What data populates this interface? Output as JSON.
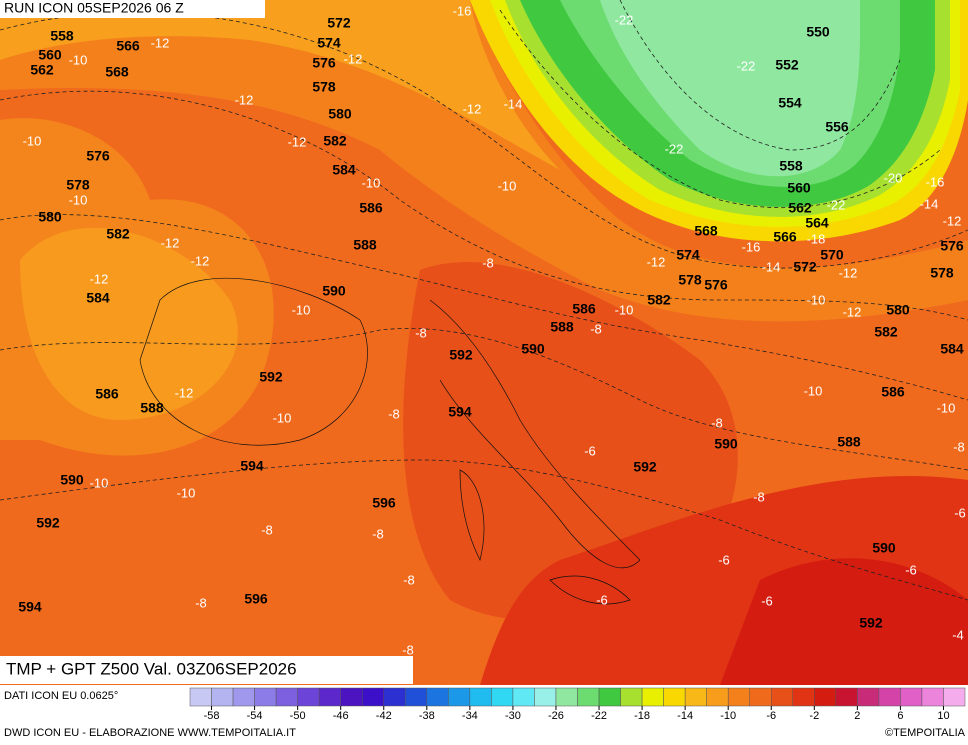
{
  "header": {
    "title": "RUN ICON 05SEP2026 06 Z"
  },
  "map": {
    "caption": "TMP + GPT Z500 Val. 03Z06SEP2026",
    "gpt_labels": [
      572,
      574,
      576,
      578,
      580,
      582,
      584,
      586,
      588,
      590,
      592,
      594,
      596,
      596,
      594,
      592,
      590,
      588,
      586,
      584,
      582,
      580,
      578,
      576,
      562,
      560,
      558,
      566,
      568,
      592,
      590,
      594,
      588,
      586,
      582,
      578,
      576,
      574,
      568,
      566,
      572,
      570,
      564,
      562,
      560,
      558,
      556,
      554,
      552,
      550,
      576,
      578,
      580,
      582,
      584,
      586,
      588,
      590,
      590,
      592,
      592
    ],
    "tmp_labels": [
      -16,
      -22,
      -22,
      -22,
      -12,
      -10,
      -12,
      -12,
      -14,
      -12,
      -10,
      -12,
      -10,
      -10,
      -10,
      -12,
      -12,
      -12,
      -8,
      -16,
      -18,
      -14,
      -12,
      -12,
      -10,
      -12,
      -10,
      -8,
      -10,
      -8,
      -12,
      -10,
      -8,
      -10,
      -10,
      -8,
      -8,
      -6,
      -10,
      -10,
      -8,
      -8,
      -8,
      -6,
      -6,
      -6,
      -8,
      -8,
      -6,
      -6,
      -4,
      -8,
      -20,
      -16,
      -14,
      -12,
      -22
    ]
  },
  "legend": {
    "source": "DATI ICON EU 0.0625°",
    "ticks": [
      -58,
      -54,
      -50,
      -46,
      -42,
      -38,
      -34,
      -30,
      -26,
      -22,
      -18,
      -14,
      -10,
      -6,
      -2,
      2,
      6,
      10
    ],
    "colors": [
      "#c8c8f5",
      "#b4b4f0",
      "#a098ec",
      "#8c7ce8",
      "#7c60e0",
      "#6c44d8",
      "#5c28cc",
      "#4c14c0",
      "#3c10c8",
      "#2c30d0",
      "#2050d8",
      "#1c74e0",
      "#1c98e8",
      "#20bcf0",
      "#30d8f4",
      "#60e8f4",
      "#98f0e8",
      "#90e8a0",
      "#6cdc70",
      "#40c840",
      "#a8e030",
      "#e8f000",
      "#f8d800",
      "#f8b818",
      "#f89c1c",
      "#f4801c",
      "#f06a1c",
      "#e8501a",
      "#e03414",
      "#d41c10",
      "#c81430",
      "#c82c78",
      "#d444a8",
      "#e060c8",
      "#ec84dc",
      "#f4acec"
    ]
  },
  "footer": {
    "credit": "DWD ICON EU - ELABORAZIONE WWW.TEMPOITALIA.IT",
    "brand": "©TEMPOITALIA"
  }
}
